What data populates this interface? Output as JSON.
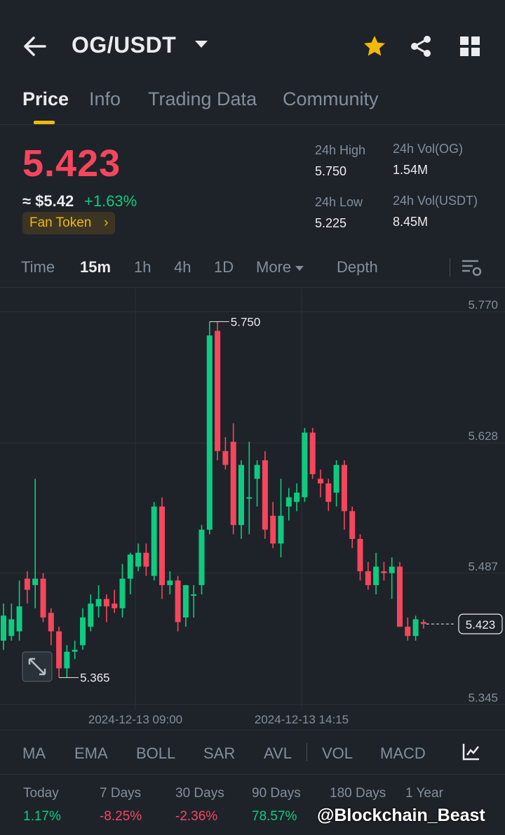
{
  "header": {
    "pair": "OG/USDT"
  },
  "tabs": [
    "Price",
    "Info",
    "Trading Data",
    "Community"
  ],
  "ticker": {
    "last_price": "5.423",
    "usd_price": "≈ $5.42",
    "change": "+1.63%",
    "tag": "Fan Token",
    "high_label": "24h High",
    "high_value": "5.750",
    "low_label": "24h Low",
    "low_value": "5.225",
    "vol_base_label": "24h Vol(OG)",
    "vol_base_value": "1.54M",
    "vol_quote_label": "24h Vol(USDT)",
    "vol_quote_value": "8.45M"
  },
  "timeframes": [
    "Time",
    "15m",
    "1h",
    "4h",
    "1D",
    "More",
    "Depth"
  ],
  "active_timeframe": "15m",
  "indicators": [
    "MA",
    "EMA",
    "BOLL",
    "SAR",
    "AVL",
    "VOL",
    "MACD"
  ],
  "performance": [
    {
      "label": "Today",
      "value": "1.17%"
    },
    {
      "label": "7 Days",
      "value": "-8.25%"
    },
    {
      "label": "30 Days",
      "value": "-2.36%"
    },
    {
      "label": "90 Days",
      "value": "78.57%"
    },
    {
      "label": "180 Days",
      "value": ""
    },
    {
      "label": "1 Year",
      "value": ""
    }
  ],
  "watermark": "@Blockchain_Beast",
  "colors": {
    "up": "#0ecb81",
    "down": "#f6465d",
    "accent": "#f0b90b",
    "background": "#1e2329"
  },
  "chart_data": {
    "type": "candlestick",
    "y_ticks": [
      "5.770",
      "5.628",
      "5.487",
      "5.345"
    ],
    "ylim": [
      5.3,
      5.8
    ],
    "x_ticks": [
      "2024-12-13 09:00",
      "2024-12-13 14:15"
    ],
    "max_label": "5.750",
    "min_label": "5.365",
    "last_label": "5.423",
    "grid": true,
    "candles": [
      {
        "o": 5.405,
        "h": 5.445,
        "l": 5.395,
        "c": 5.432
      },
      {
        "o": 5.41,
        "h": 5.445,
        "l": 5.405,
        "c": 5.428
      },
      {
        "o": 5.415,
        "h": 5.47,
        "l": 5.405,
        "c": 5.442
      },
      {
        "o": 5.472,
        "h": 5.48,
        "l": 5.445,
        "c": 5.46
      },
      {
        "o": 5.465,
        "h": 5.58,
        "l": 5.44,
        "c": 5.472
      },
      {
        "o": 5.472,
        "h": 5.478,
        "l": 5.425,
        "c": 5.43
      },
      {
        "o": 5.435,
        "h": 5.44,
        "l": 5.4,
        "c": 5.415
      },
      {
        "o": 5.415,
        "h": 5.42,
        "l": 5.365,
        "c": 5.375
      },
      {
        "o": 5.375,
        "h": 5.4,
        "l": 5.365,
        "c": 5.393
      },
      {
        "o": 5.393,
        "h": 5.405,
        "l": 5.385,
        "c": 5.395
      },
      {
        "o": 5.4,
        "h": 5.44,
        "l": 5.395,
        "c": 5.43
      },
      {
        "o": 5.42,
        "h": 5.455,
        "l": 5.415,
        "c": 5.445
      },
      {
        "o": 5.442,
        "h": 5.465,
        "l": 5.43,
        "c": 5.45
      },
      {
        "o": 5.45,
        "h": 5.455,
        "l": 5.425,
        "c": 5.442
      },
      {
        "o": 5.445,
        "h": 5.46,
        "l": 5.435,
        "c": 5.44
      },
      {
        "o": 5.44,
        "h": 5.488,
        "l": 5.43,
        "c": 5.472
      },
      {
        "o": 5.472,
        "h": 5.5,
        "l": 5.455,
        "c": 5.498
      },
      {
        "o": 5.485,
        "h": 5.51,
        "l": 5.48,
        "c": 5.5
      },
      {
        "o": 5.5,
        "h": 5.51,
        "l": 5.475,
        "c": 5.485
      },
      {
        "o": 5.475,
        "h": 5.555,
        "l": 5.47,
        "c": 5.55
      },
      {
        "o": 5.55,
        "h": 5.56,
        "l": 5.45,
        "c": 5.465
      },
      {
        "o": 5.465,
        "h": 5.48,
        "l": 5.455,
        "c": 5.47
      },
      {
        "o": 5.47,
        "h": 5.475,
        "l": 5.415,
        "c": 5.425
      },
      {
        "o": 5.43,
        "h": 5.465,
        "l": 5.42,
        "c": 5.465
      },
      {
        "o": 5.455,
        "h": 5.465,
        "l": 5.43,
        "c": 5.455
      },
      {
        "o": 5.465,
        "h": 5.53,
        "l": 5.455,
        "c": 5.525
      },
      {
        "o": 5.525,
        "h": 5.75,
        "l": 5.52,
        "c": 5.735
      },
      {
        "o": 5.74,
        "h": 5.75,
        "l": 5.6,
        "c": 5.61
      },
      {
        "o": 5.61,
        "h": 5.625,
        "l": 5.59,
        "c": 5.595
      },
      {
        "o": 5.62,
        "h": 5.64,
        "l": 5.52,
        "c": 5.53
      },
      {
        "o": 5.53,
        "h": 5.6,
        "l": 5.515,
        "c": 5.595
      },
      {
        "o": 5.56,
        "h": 5.62,
        "l": 5.52,
        "c": 5.56
      },
      {
        "o": 5.58,
        "h": 5.6,
        "l": 5.55,
        "c": 5.595
      },
      {
        "o": 5.6,
        "h": 5.61,
        "l": 5.515,
        "c": 5.525
      },
      {
        "o": 5.54,
        "h": 5.555,
        "l": 5.505,
        "c": 5.51
      },
      {
        "o": 5.51,
        "h": 5.58,
        "l": 5.495,
        "c": 5.54
      },
      {
        "o": 5.55,
        "h": 5.57,
        "l": 5.535,
        "c": 5.56
      },
      {
        "o": 5.555,
        "h": 5.575,
        "l": 5.545,
        "c": 5.565
      },
      {
        "o": 5.56,
        "h": 5.635,
        "l": 5.555,
        "c": 5.63
      },
      {
        "o": 5.63,
        "h": 5.635,
        "l": 5.58,
        "c": 5.585
      },
      {
        "o": 5.58,
        "h": 5.59,
        "l": 5.56,
        "c": 5.575
      },
      {
        "o": 5.575,
        "h": 5.58,
        "l": 5.545,
        "c": 5.555
      },
      {
        "o": 5.565,
        "h": 5.6,
        "l": 5.55,
        "c": 5.595
      },
      {
        "o": 5.595,
        "h": 5.6,
        "l": 5.525,
        "c": 5.545
      },
      {
        "o": 5.545,
        "h": 5.55,
        "l": 5.505,
        "c": 5.515
      },
      {
        "o": 5.515,
        "h": 5.52,
        "l": 5.47,
        "c": 5.48
      },
      {
        "o": 5.48,
        "h": 5.49,
        "l": 5.46,
        "c": 5.465
      },
      {
        "o": 5.465,
        "h": 5.5,
        "l": 5.455,
        "c": 5.485
      },
      {
        "o": 5.48,
        "h": 5.49,
        "l": 5.47,
        "c": 5.478
      },
      {
        "o": 5.478,
        "h": 5.495,
        "l": 5.45,
        "c": 5.485
      },
      {
        "o": 5.485,
        "h": 5.49,
        "l": 5.42,
        "c": 5.42
      },
      {
        "o": 5.42,
        "h": 5.43,
        "l": 5.405,
        "c": 5.41
      },
      {
        "o": 5.41,
        "h": 5.432,
        "l": 5.405,
        "c": 5.428
      },
      {
        "o": 5.425,
        "h": 5.428,
        "l": 5.418,
        "c": 5.423
      }
    ]
  }
}
